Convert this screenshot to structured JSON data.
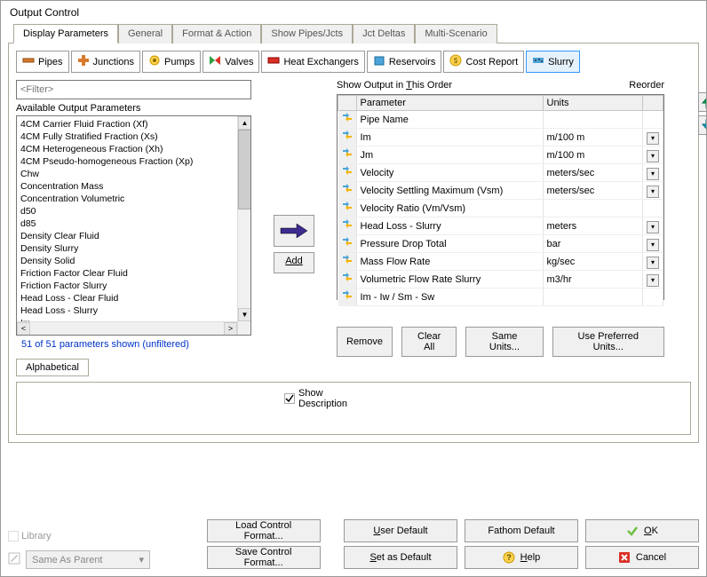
{
  "window": {
    "title": "Output Control"
  },
  "tabs": {
    "items": [
      {
        "label": "Display Parameters"
      },
      {
        "label": "General"
      },
      {
        "label": "Format & Action"
      },
      {
        "label": "Show Pipes/Jcts"
      },
      {
        "label": "Jct Deltas"
      },
      {
        "label": "Multi-Scenario"
      }
    ],
    "active": 0
  },
  "subtabs": {
    "items": [
      {
        "label": "Pipes",
        "icon": "pipes"
      },
      {
        "label": "Junctions",
        "icon": "junctions"
      },
      {
        "label": "Pumps",
        "icon": "pumps"
      },
      {
        "label": "Valves",
        "icon": "valves"
      },
      {
        "label": "Heat Exchangers",
        "icon": "heat"
      },
      {
        "label": "Reservoirs",
        "icon": "reservoirs"
      },
      {
        "label": "Cost Report",
        "icon": "cost"
      },
      {
        "label": "Slurry",
        "icon": "slurry"
      }
    ],
    "active": 7
  },
  "filter": {
    "placeholder": "<Filter>"
  },
  "available": {
    "label": "Available Output Parameters",
    "items": [
      "4CM Carrier Fluid Fraction (Xf)",
      "4CM Fully Stratified Fraction (Xs)",
      "4CM Heterogeneous Fraction (Xh)",
      "4CM Pseudo-homogeneous Fraction (Xp)",
      "Chw",
      "Concentration Mass",
      "Concentration Volumetric",
      "d50",
      "d85",
      "Density Clear Fluid",
      "Density Slurry",
      "Density Solid",
      "Friction Factor Clear Fluid",
      "Friction Factor Slurry",
      "Head Loss - Clear Fluid",
      "Head Loss - Slurry",
      "Im"
    ],
    "count_text": "51 of 51 parameters shown (unfiltered)",
    "alpha_tab": "Alphabetical"
  },
  "add_button": {
    "label": "Add"
  },
  "show_desc": {
    "label1": "Show",
    "label2": "Description",
    "checked": true
  },
  "order": {
    "heading_pre": "Show Output in ",
    "heading_ul": "T",
    "heading_post": "his Order",
    "reorder_label": "Reorder",
    "cols": {
      "param": "Parameter",
      "units": "Units"
    },
    "rows": [
      {
        "param": "Pipe Name",
        "units": "",
        "dd": false
      },
      {
        "param": "Im",
        "units": "m/100 m",
        "dd": true
      },
      {
        "param": "Jm",
        "units": "m/100 m",
        "dd": true
      },
      {
        "param": "Velocity",
        "units": "meters/sec",
        "dd": true
      },
      {
        "param": "Velocity Settling Maximum (Vsm)",
        "units": "meters/sec",
        "dd": true
      },
      {
        "param": "Velocity Ratio (Vm/Vsm)",
        "units": "",
        "dd": false
      },
      {
        "param": "Head Loss - Slurry",
        "units": "meters",
        "dd": true
      },
      {
        "param": "Pressure Drop Total",
        "units": "bar",
        "dd": true
      },
      {
        "param": "Mass Flow Rate",
        "units": "kg/sec",
        "dd": true
      },
      {
        "param": "Volumetric Flow Rate Slurry",
        "units": "m3/hr",
        "dd": true
      },
      {
        "param": "Im - Iw / Sm - Sw",
        "units": "",
        "dd": false
      }
    ]
  },
  "row_buttons": {
    "remove": "Remove",
    "clear": "Clear All",
    "same_units": "Same Units...",
    "preferred": "Use Preferred Units..."
  },
  "library": {
    "label": "Library"
  },
  "same_as_parent": {
    "label": "Same As Parent"
  },
  "footer": {
    "load": "Load Control Format...",
    "save": "Save Control Format...",
    "user_default_ul": "U",
    "user_default_post": "ser Default",
    "set_default_ul": "S",
    "set_default_post": "et as Default",
    "fathom": "Fathom Default",
    "help_ul": "H",
    "help_post": "elp",
    "ok_ul": "O",
    "ok_post": "K",
    "cancel": "Cancel"
  },
  "colors": {
    "grip_a": "#4aa4d9",
    "grip_b": "#f5b400",
    "arrow": "#3d2b8e",
    "up": "#00a651",
    "down": "#00a2c7",
    "check": "#6fbf44",
    "cancel": "#d93025"
  }
}
